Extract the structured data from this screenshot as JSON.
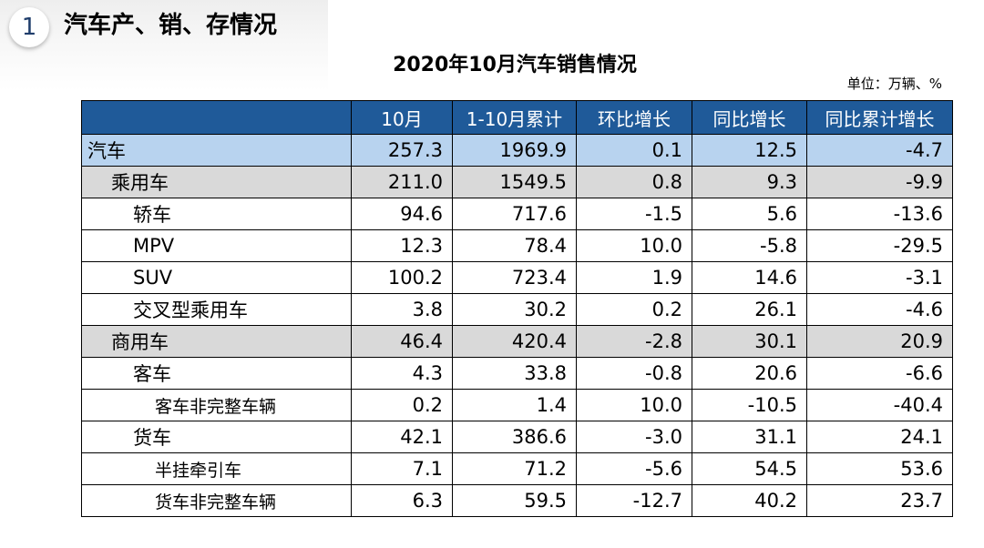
{
  "section": {
    "number": "1",
    "title": "汽车产、销、存情况"
  },
  "table": {
    "title": "2020年10月汽车销售情况",
    "unit": "单位：万辆、%",
    "columns": [
      "",
      "10月",
      "1-10月累计",
      "环比增长",
      "同比增长",
      "同比累计增长"
    ],
    "rows": [
      {
        "level": 0,
        "name": "汽车",
        "values": [
          "257.3",
          "1969.9",
          "0.1",
          "12.5",
          "-4.7"
        ]
      },
      {
        "level": 1,
        "name": "乘用车",
        "values": [
          "211.0",
          "1549.5",
          "0.8",
          "9.3",
          "-9.9"
        ]
      },
      {
        "level": 2,
        "name": "轿车",
        "values": [
          "94.6",
          "717.6",
          "-1.5",
          "5.6",
          "-13.6"
        ]
      },
      {
        "level": 2,
        "name": "MPV",
        "values": [
          "12.3",
          "78.4",
          "10.0",
          "-5.8",
          "-29.5"
        ]
      },
      {
        "level": 2,
        "name": "SUV",
        "values": [
          "100.2",
          "723.4",
          "1.9",
          "14.6",
          "-3.1"
        ]
      },
      {
        "level": 2,
        "name": "交叉型乘用车",
        "values": [
          "3.8",
          "30.2",
          "0.2",
          "26.1",
          "-4.6"
        ]
      },
      {
        "level": 1,
        "name": "商用车",
        "values": [
          "46.4",
          "420.4",
          "-2.8",
          "30.1",
          "20.9"
        ]
      },
      {
        "level": 2,
        "name": "客车",
        "values": [
          "4.3",
          "33.8",
          "-0.8",
          "20.6",
          "-6.6"
        ]
      },
      {
        "level": 3,
        "name": "客车非完整车辆",
        "values": [
          "0.2",
          "1.4",
          "10.0",
          "-10.5",
          "-40.4"
        ]
      },
      {
        "level": 2,
        "name": "货车",
        "values": [
          "42.1",
          "386.6",
          "-3.0",
          "31.1",
          "24.1"
        ]
      },
      {
        "level": 3,
        "name": "半挂牵引车",
        "values": [
          "7.1",
          "71.2",
          "-5.6",
          "54.5",
          "53.6"
        ]
      },
      {
        "level": 3,
        "name": "货车非完整车辆",
        "values": [
          "6.3",
          "59.5",
          "-12.7",
          "40.2",
          "23.7"
        ]
      }
    ]
  },
  "colors": {
    "header_bg": "#1f5a99",
    "total_row_bg": "#b8d3ef",
    "group_row_bg": "#d9d9d9",
    "badge_number": "#1f3d6b"
  }
}
